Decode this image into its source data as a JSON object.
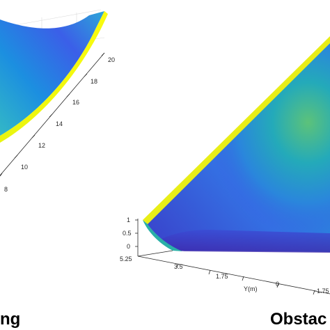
{
  "chart_data": [
    {
      "type": "surface",
      "panel": "left",
      "caption": "ng",
      "axis_ticks": [
        "20",
        "18",
        "16",
        "14",
        "12",
        "10",
        "8"
      ],
      "colormap": [
        "#3e26a8",
        "#2e6ee6",
        "#14a8cc",
        "#33c397",
        "#a9c330",
        "#f9fb0e"
      ]
    },
    {
      "type": "surface",
      "panel": "right",
      "caption": "Obstac",
      "z_ticks": [
        "1",
        "0.5",
        "0"
      ],
      "y_ticks": [
        "5.25",
        "3.5",
        "1.75",
        "0",
        "-1.75"
      ],
      "ylabel": "Y(m)",
      "colormap": [
        "#3e26a8",
        "#2e6ee6",
        "#14a8cc",
        "#33c397",
        "#a9c330",
        "#f9fb0e"
      ]
    }
  ]
}
